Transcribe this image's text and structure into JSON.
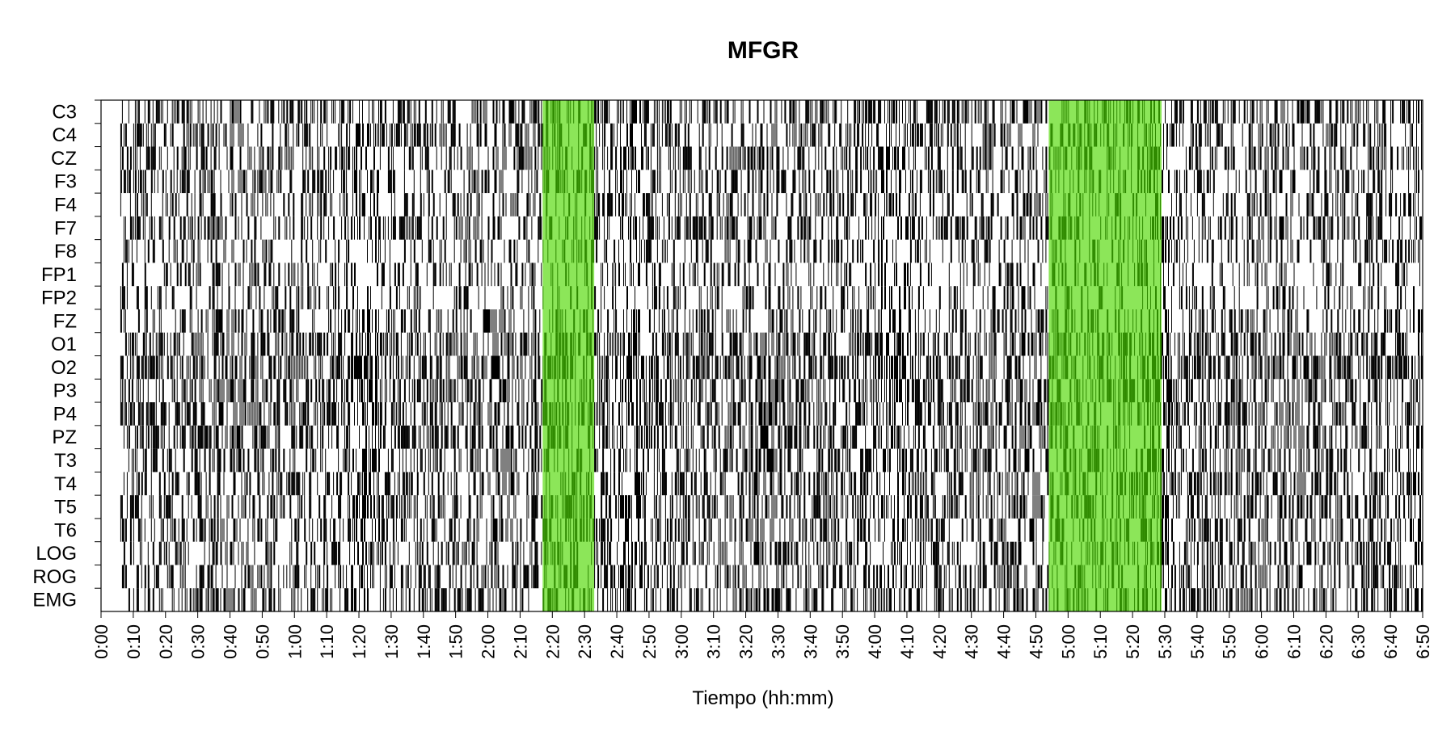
{
  "chart_data": {
    "type": "heatmap",
    "title": "MFGR",
    "xlabel": "Tiempo (hh:mm)",
    "ylabel": "",
    "x_unit": "minutes",
    "xlim": [
      0,
      410
    ],
    "channels": [
      "C3",
      "C4",
      "CZ",
      "F3",
      "F4",
      "F7",
      "F8",
      "FP1",
      "FP2",
      "FZ",
      "O1",
      "O2",
      "P3",
      "P4",
      "PZ",
      "T3",
      "T4",
      "T5",
      "T6",
      "LOG",
      "ROG",
      "EMG"
    ],
    "x_ticks": [
      "0:00",
      "0:10",
      "0:20",
      "0:30",
      "0:40",
      "0:50",
      "1:00",
      "1:10",
      "1:20",
      "1:30",
      "1:40",
      "1:50",
      "2:00",
      "2:10",
      "2:20",
      "2:30",
      "2:40",
      "2:50",
      "3:00",
      "3:10",
      "3:20",
      "3:30",
      "3:40",
      "3:50",
      "4:00",
      "4:10",
      "4:20",
      "4:30",
      "4:40",
      "4:50",
      "5:00",
      "5:10",
      "5:20",
      "5:30",
      "5:40",
      "5:50",
      "6:00",
      "6:10",
      "6:20",
      "6:30",
      "6:40",
      "6:50"
    ],
    "highlight_intervals": [
      {
        "start": 137,
        "end": 153,
        "color": "#66dd22"
      },
      {
        "start": 294,
        "end": 329,
        "color": "#66dd22"
      }
    ],
    "channel_density": [
      0.55,
      0.5,
      0.52,
      0.45,
      0.4,
      0.48,
      0.4,
      0.35,
      0.33,
      0.42,
      0.62,
      0.65,
      0.6,
      0.6,
      0.55,
      0.5,
      0.52,
      0.55,
      0.5,
      0.48,
      0.48,
      0.5
    ],
    "base_color": "#000000",
    "highlight_color": "#66dd22",
    "legend": "none",
    "grid": false
  }
}
